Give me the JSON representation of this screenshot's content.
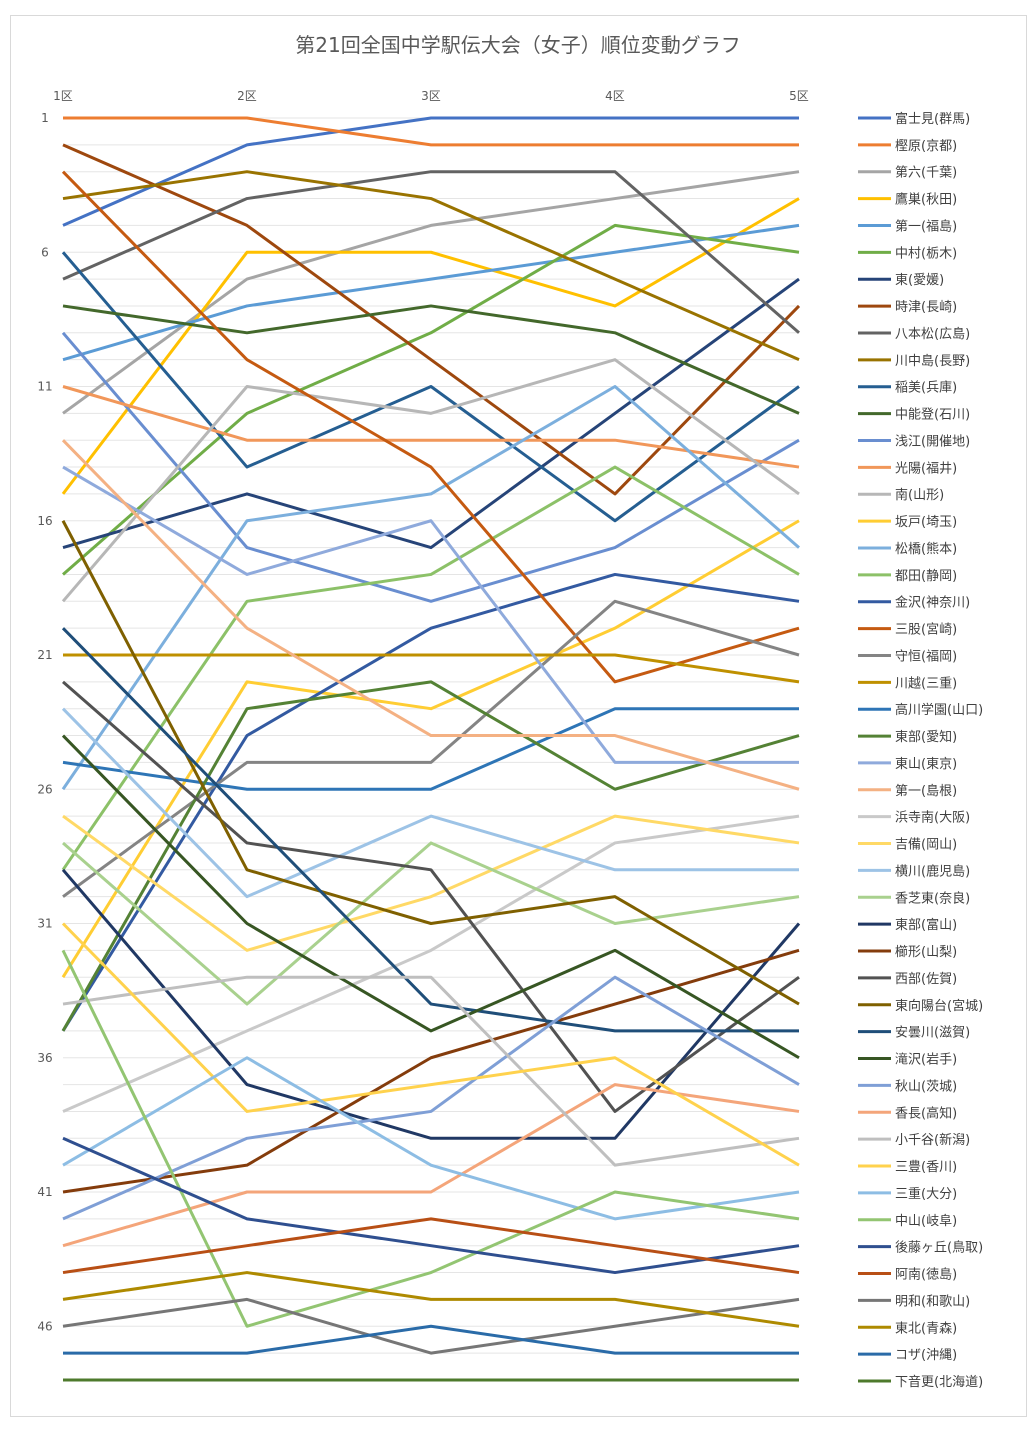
{
  "chart_data": {
    "type": "line",
    "title": "第21回全国中学駅伝大会（女子）順位変動グラフ",
    "xlabel": "",
    "ylabel": "",
    "categories": [
      "1区",
      "2区",
      "3区",
      "4区",
      "5区"
    ],
    "y_tick_labels": [
      "1",
      "6",
      "11",
      "16",
      "21",
      "26",
      "31",
      "36",
      "41",
      "46"
    ],
    "y_ticks": [
      1,
      6,
      11,
      16,
      21,
      26,
      31,
      36,
      41,
      46
    ],
    "ylim": [
      1,
      48
    ],
    "y_inverted": true,
    "grid": true,
    "legend_position": "right",
    "series": [
      {
        "name": "富士見(群馬)",
        "color": "#4472C4",
        "values": [
          5,
          2,
          1,
          1,
          1
        ]
      },
      {
        "name": "樫原(京都)",
        "color": "#ED7D31",
        "values": [
          1,
          1,
          2,
          2,
          2
        ]
      },
      {
        "name": "第六(千葉)",
        "color": "#A5A5A5",
        "values": [
          12,
          7,
          5,
          4,
          3
        ]
      },
      {
        "name": "鷹巣(秋田)",
        "color": "#FFC000",
        "values": [
          15,
          6,
          6,
          8,
          4
        ]
      },
      {
        "name": "第一(福島)",
        "color": "#5B9BD5",
        "values": [
          10,
          8,
          7,
          6,
          5
        ]
      },
      {
        "name": "中村(栃木)",
        "color": "#70AD47",
        "values": [
          18,
          12,
          9,
          5,
          6
        ]
      },
      {
        "name": "東(愛媛)",
        "color": "#264478",
        "values": [
          17,
          15,
          17,
          12,
          7
        ]
      },
      {
        "name": "時津(長崎)",
        "color": "#9E480E",
        "values": [
          2,
          5,
          10,
          15,
          8
        ]
      },
      {
        "name": "八本松(広島)",
        "color": "#636363",
        "values": [
          7,
          4,
          3,
          3,
          9
        ]
      },
      {
        "name": "川中島(長野)",
        "color": "#997300",
        "values": [
          4,
          3,
          4,
          7,
          10
        ]
      },
      {
        "name": "稲美(兵庫)",
        "color": "#255E91",
        "values": [
          6,
          14,
          11,
          16,
          11
        ]
      },
      {
        "name": "中能登(石川)",
        "color": "#43682B",
        "values": [
          8,
          9,
          8,
          9,
          12
        ]
      },
      {
        "name": "浅江(開催地)",
        "color": "#698ED0",
        "values": [
          9,
          17,
          19,
          17,
          13
        ]
      },
      {
        "name": "光陽(福井)",
        "color": "#F1975A",
        "values": [
          11,
          13,
          13,
          13,
          14
        ]
      },
      {
        "name": "南(山形)",
        "color": "#B7B7B7",
        "values": [
          19,
          11,
          12,
          10,
          15
        ]
      },
      {
        "name": "坂戸(埼玉)",
        "color": "#FFCD33",
        "values": [
          33,
          22,
          23,
          20,
          16
        ]
      },
      {
        "name": "松橋(熊本)",
        "color": "#7CAFDD",
        "values": [
          26,
          16,
          15,
          11,
          17
        ]
      },
      {
        "name": "都田(静岡)",
        "color": "#8CC168",
        "values": [
          29,
          19,
          18,
          14,
          18
        ]
      },
      {
        "name": "金沢(神奈川)",
        "color": "#335AA1",
        "values": [
          35,
          24,
          20,
          18,
          19
        ]
      },
      {
        "name": "三股(宮崎)",
        "color": "#C55A11",
        "values": [
          3,
          10,
          14,
          22,
          20
        ]
      },
      {
        "name": "守恒(福岡)",
        "color": "#848484",
        "values": [
          30,
          25,
          25,
          19,
          21
        ]
      },
      {
        "name": "川越(三重)",
        "color": "#BF9000",
        "values": [
          21,
          21,
          21,
          21,
          22
        ]
      },
      {
        "name": "高川学園(山口)",
        "color": "#2E75B6",
        "values": [
          25,
          26,
          26,
          23,
          23
        ]
      },
      {
        "name": "東部(愛知)",
        "color": "#548235",
        "values": [
          35,
          23,
          22,
          26,
          24
        ]
      },
      {
        "name": "東山(東京)",
        "color": "#8FAADC",
        "values": [
          14,
          18,
          16,
          25,
          25
        ]
      },
      {
        "name": "第一(島根)",
        "color": "#F4B183",
        "values": [
          13,
          20,
          24,
          24,
          26
        ]
      },
      {
        "name": "浜寺南(大阪)",
        "color": "#C9C9C9",
        "values": [
          38,
          35,
          32,
          28,
          27
        ]
      },
      {
        "name": "吉備(岡山)",
        "color": "#FFD966",
        "values": [
          27,
          32,
          30,
          27,
          28
        ]
      },
      {
        "name": "横川(鹿児島)",
        "color": "#9DC3E6",
        "values": [
          23,
          30,
          27,
          29,
          29
        ]
      },
      {
        "name": "香芝東(奈良)",
        "color": "#A9D18E",
        "values": [
          28,
          34,
          28,
          31,
          30
        ]
      },
      {
        "name": "東部(富山)",
        "color": "#203864",
        "values": [
          29,
          37,
          39,
          39,
          31
        ]
      },
      {
        "name": "櫛形(山梨)",
        "color": "#843C0C",
        "values": [
          41,
          40,
          36,
          34,
          32
        ]
      },
      {
        "name": "西部(佐賀)",
        "color": "#525252",
        "values": [
          22,
          28,
          29,
          38,
          33
        ]
      },
      {
        "name": "東向陽台(宮城)",
        "color": "#7F6000",
        "values": [
          16,
          29,
          31,
          30,
          34
        ]
      },
      {
        "name": "安曇川(滋賀)",
        "color": "#1F4E79",
        "values": [
          20,
          27,
          34,
          35,
          35
        ]
      },
      {
        "name": "滝沢(岩手)",
        "color": "#375623",
        "values": [
          24,
          31,
          35,
          32,
          36
        ]
      },
      {
        "name": "秋山(茨城)",
        "color": "#7F9FD6",
        "values": [
          42,
          39,
          38,
          33,
          37
        ]
      },
      {
        "name": "香長(高知)",
        "color": "#F4A57A",
        "values": [
          43,
          41,
          41,
          37,
          38
        ]
      },
      {
        "name": "小千谷(新潟)",
        "color": "#BFBFBF",
        "values": [
          34,
          33,
          33,
          40,
          39
        ]
      },
      {
        "name": "三豊(香川)",
        "color": "#FFD24D",
        "values": [
          31,
          38,
          37,
          36,
          40
        ]
      },
      {
        "name": "三重(大分)",
        "color": "#8DBDE4",
        "values": [
          40,
          36,
          40,
          42,
          41
        ]
      },
      {
        "name": "中山(岐阜)",
        "color": "#93C572",
        "values": [
          32,
          46,
          44,
          41,
          42
        ]
      },
      {
        "name": "後藤ヶ丘(鳥取)",
        "color": "#2F4F8F",
        "values": [
          39,
          42,
          43,
          44,
          43
        ]
      },
      {
        "name": "阿南(徳島)",
        "color": "#B84F15",
        "values": [
          44,
          43,
          42,
          43,
          44
        ]
      },
      {
        "name": "明和(和歌山)",
        "color": "#767676",
        "values": [
          46,
          45,
          47,
          46,
          45
        ]
      },
      {
        "name": "東北(青森)",
        "color": "#AE8A00",
        "values": [
          45,
          44,
          45,
          45,
          46
        ]
      },
      {
        "name": "コザ(沖縄)",
        "color": "#2A6BA8",
        "values": [
          47,
          47,
          46,
          47,
          47
        ]
      },
      {
        "name": "下音更(北海道)",
        "color": "#4E7A2C",
        "values": [
          48,
          48,
          48,
          48,
          48
        ]
      }
    ]
  }
}
